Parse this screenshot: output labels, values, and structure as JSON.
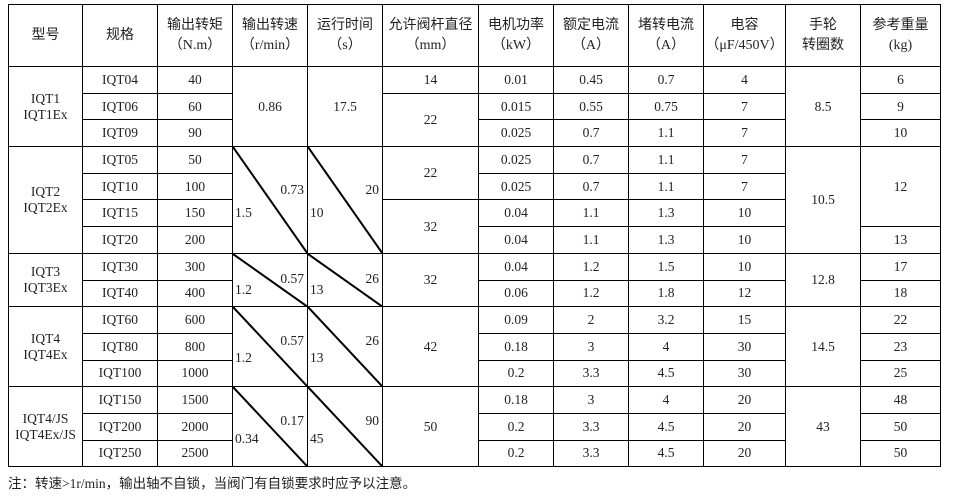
{
  "headers": [
    {
      "l1": "型号",
      "l2": ""
    },
    {
      "l1": "规格",
      "l2": ""
    },
    {
      "l1": "输出转矩",
      "l2": "（N.m）"
    },
    {
      "l1": "输出转速",
      "l2": "（r/min）"
    },
    {
      "l1": "运行时间",
      "l2": "（s）"
    },
    {
      "l1": "允许阀杆直径",
      "l2": "（mm）"
    },
    {
      "l1": "电机功率",
      "l2": "（kW）"
    },
    {
      "l1": "额定电流",
      "l2": "（A）"
    },
    {
      "l1": "堵转电流",
      "l2": "（A）"
    },
    {
      "l1": "电容",
      "l2": "（μF/450V）"
    },
    {
      "l1": "手轮",
      "l2": "转圈数"
    },
    {
      "l1": "参考重量",
      "l2": "(kg)"
    }
  ],
  "groups": [
    {
      "model": [
        "IQT1",
        "IQT1Ex"
      ],
      "rows": [
        {
          "spec": "IQT04",
          "torque": "40",
          "power": "0.01",
          "rated": "0.45",
          "stall": "0.7",
          "cap": "4"
        },
        {
          "spec": "IQT06",
          "torque": "60",
          "power": "0.015",
          "rated": "0.55",
          "stall": "0.75",
          "cap": "7"
        },
        {
          "spec": "IQT09",
          "torque": "90",
          "power": "0.025",
          "rated": "0.7",
          "stall": "1.1",
          "cap": "7"
        }
      ],
      "speed": {
        "value": "0.86"
      },
      "time": {
        "value": "17.5"
      },
      "diameters": [
        {
          "value": "14",
          "span": 1
        },
        {
          "value": "22",
          "span": 2
        }
      ],
      "handwheel": "8.5",
      "weights": [
        {
          "value": "6",
          "span": 1
        },
        {
          "value": "9",
          "span": 1
        },
        {
          "value": "10",
          "span": 1
        }
      ]
    },
    {
      "model": [
        "IQT2",
        "IQT2Ex"
      ],
      "rows": [
        {
          "spec": "IQT05",
          "torque": "50",
          "power": "0.025",
          "rated": "0.7",
          "stall": "1.1",
          "cap": "7"
        },
        {
          "spec": "IQT10",
          "torque": "100",
          "power": "0.025",
          "rated": "0.7",
          "stall": "1.1",
          "cap": "7"
        },
        {
          "spec": "IQT15",
          "torque": "150",
          "power": "0.04",
          "rated": "1.1",
          "stall": "1.3",
          "cap": "10"
        },
        {
          "spec": "IQT20",
          "torque": "200",
          "power": "0.04",
          "rated": "1.1",
          "stall": "1.3",
          "cap": "10"
        }
      ],
      "speed": {
        "low": "1.5",
        "high": "0.73"
      },
      "time": {
        "low": "10",
        "high": "20"
      },
      "diameters": [
        {
          "value": "22",
          "span": 2
        },
        {
          "value": "32",
          "span": 2
        }
      ],
      "handwheel": "10.5",
      "weights": [
        {
          "value": "12",
          "span": 3
        },
        {
          "value": "13",
          "span": 1
        }
      ]
    },
    {
      "model": [
        "IQT3",
        "IQT3Ex"
      ],
      "rows": [
        {
          "spec": "IQT30",
          "torque": "300",
          "power": "0.04",
          "rated": "1.2",
          "stall": "1.5",
          "cap": "10"
        },
        {
          "spec": "IQT40",
          "torque": "400",
          "power": "0.06",
          "rated": "1.2",
          "stall": "1.8",
          "cap": "12"
        }
      ],
      "speed": {
        "low": "1.2",
        "high": "0.57"
      },
      "time": {
        "low": "13",
        "high": "26"
      },
      "diameters": [
        {
          "value": "32",
          "span": 2
        }
      ],
      "handwheel": "12.8",
      "weights": [
        {
          "value": "17",
          "span": 1
        },
        {
          "value": "18",
          "span": 1
        }
      ]
    },
    {
      "model": [
        "IQT4",
        "IQT4Ex"
      ],
      "rows": [
        {
          "spec": "IQT60",
          "torque": "600",
          "power": "0.09",
          "rated": "2",
          "stall": "3.2",
          "cap": "15"
        },
        {
          "spec": "IQT80",
          "torque": "800",
          "power": "0.18",
          "rated": "3",
          "stall": "4",
          "cap": "30"
        },
        {
          "spec": "IQT100",
          "torque": "1000",
          "power": "0.2",
          "rated": "3.3",
          "stall": "4.5",
          "cap": "30"
        }
      ],
      "speed": {
        "low": "1.2",
        "high": "0.57"
      },
      "time": {
        "low": "13",
        "high": "26"
      },
      "diameters": [
        {
          "value": "42",
          "span": 3
        }
      ],
      "handwheel": "14.5",
      "weights": [
        {
          "value": "22",
          "span": 1
        },
        {
          "value": "23",
          "span": 1
        },
        {
          "value": "25",
          "span": 1
        }
      ]
    },
    {
      "model": [
        "IQT4/JS",
        "IQT4Ex/JS"
      ],
      "rows": [
        {
          "spec": "IQT150",
          "torque": "1500",
          "power": "0.18",
          "rated": "3",
          "stall": "4",
          "cap": "20"
        },
        {
          "spec": "IQT200",
          "torque": "2000",
          "power": "0.2",
          "rated": "3.3",
          "stall": "4.5",
          "cap": "20"
        },
        {
          "spec": "IQT250",
          "torque": "2500",
          "power": "0.2",
          "rated": "3.3",
          "stall": "4.5",
          "cap": "20"
        }
      ],
      "speed": {
        "low": "0.34",
        "high": "0.17"
      },
      "time": {
        "low": "45",
        "high": "90"
      },
      "diameters": [
        {
          "value": "50",
          "span": 3
        }
      ],
      "handwheel": "43",
      "weights": [
        {
          "value": "48",
          "span": 1
        },
        {
          "value": "50",
          "span": 1
        },
        {
          "value": "50",
          "span": 1
        }
      ]
    }
  ],
  "note": "注：转速>1r/min，输出轴不自锁，当阀门有自锁要求时应予以注意。"
}
